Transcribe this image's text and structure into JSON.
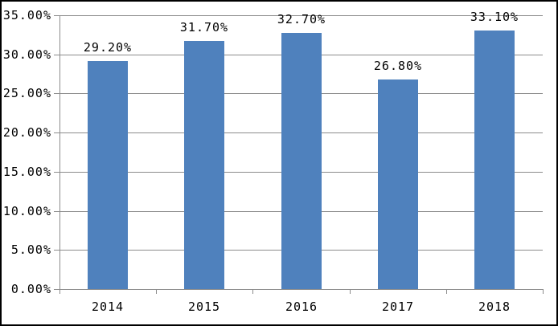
{
  "chart_data": {
    "type": "bar",
    "title": "",
    "categories": [
      "2014",
      "2015",
      "2016",
      "2017",
      "2018"
    ],
    "values": [
      29.2,
      31.7,
      32.7,
      26.8,
      33.1
    ],
    "bar_labels": [
      "29.20%",
      "31.70%",
      "32.70%",
      "26.80%",
      "33.10%"
    ],
    "xlabel": "",
    "ylabel": "",
    "y_axis": {
      "min": 0,
      "max": 35,
      "step": 5,
      "tick_labels": [
        "35.00%",
        "30.00%",
        "25.00%",
        "20.00%",
        "15.00%",
        "10.00%",
        "5.00%",
        "0.00%"
      ]
    },
    "grid": true,
    "legend_position": "none",
    "colors": {
      "bar": "#4F81BD",
      "gridline": "#8C8C8C",
      "axis": "#8C8C8C",
      "text": "#000000",
      "background": "#FFFFFF",
      "border": "#000000"
    }
  }
}
